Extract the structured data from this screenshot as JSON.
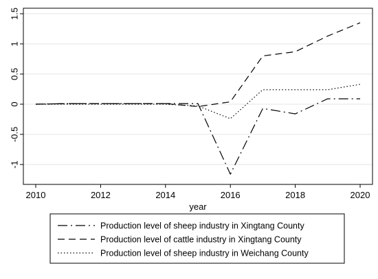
{
  "chart_data": {
    "type": "line",
    "xlabel": "year",
    "ylabel": "",
    "xlim": [
      2010,
      2020
    ],
    "ylim": [
      -1.25,
      1.5
    ],
    "x_ticks": [
      2010,
      2012,
      2014,
      2016,
      2018,
      2020
    ],
    "y_ticks": [
      -1,
      -0.5,
      0,
      0.5,
      1,
      1.5
    ],
    "x_tick_labels": [
      "2010",
      "2012",
      "2014",
      "2016",
      "2018",
      "2020"
    ],
    "y_tick_labels": [
      "-1",
      "-0.5",
      "0",
      "0.5",
      "1",
      "1.5"
    ],
    "grid": "horizontal",
    "legend_position": "bottom",
    "x": [
      2010,
      2011,
      2012,
      2013,
      2014,
      2015,
      2016,
      2017,
      2018,
      2019,
      2020
    ],
    "series": [
      {
        "name": "Production level of sheep industry in Xingtang County",
        "style": "dashdot",
        "color": "#000000",
        "values": [
          0,
          0.01,
          0.01,
          0.01,
          0.01,
          0.01,
          -1.16,
          -0.07,
          -0.16,
          0.09,
          0.09
        ]
      },
      {
        "name": "Production level of cattle industry in Xingtang County",
        "style": "dashed",
        "color": "#000000",
        "values": [
          0,
          0.01,
          0.01,
          0.01,
          0.01,
          -0.04,
          0.04,
          0.8,
          0.87,
          1.13,
          1.35
        ]
      },
      {
        "name": "Production level of sheep industry in Weichang County",
        "style": "dotted",
        "color": "#000000",
        "values": [
          0,
          0,
          0,
          0,
          0,
          -0.03,
          -0.24,
          0.24,
          0.24,
          0.24,
          0.33
        ]
      }
    ]
  }
}
